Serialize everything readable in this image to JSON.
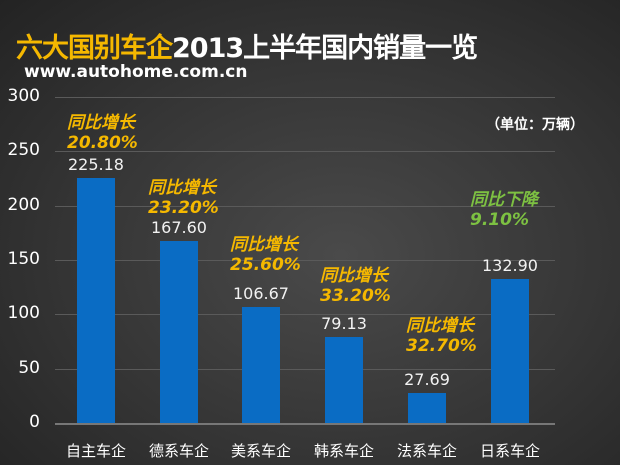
{
  "title": {
    "highlight": "六大国别车企",
    "rest": "2013上半年国内销量一览"
  },
  "url": "www.autohome.com.cn",
  "unit": "（单位：万辆）",
  "colors": {
    "bar": "#0a6cc4",
    "increase": "#f5b800",
    "decrease": "#7dc142",
    "title_highlight": "#f5b800"
  },
  "y_ticks": [
    "0",
    "50",
    "100",
    "150",
    "200",
    "250",
    "300"
  ],
  "bars": [
    {
      "category": "自主车企",
      "value": "225.18",
      "change_label": "同比增长",
      "change_pct": "20.80%",
      "trend": "up"
    },
    {
      "category": "德系车企",
      "value": "167.60",
      "change_label": "同比增长",
      "change_pct": "23.20%",
      "trend": "up"
    },
    {
      "category": "美系车企",
      "value": "106.67",
      "change_label": "同比增长",
      "change_pct": "25.60%",
      "trend": "up"
    },
    {
      "category": "韩系车企",
      "value": "79.13",
      "change_label": "同比增长",
      "change_pct": "33.20%",
      "trend": "up"
    },
    {
      "category": "法系车企",
      "value": "27.69",
      "change_label": "同比增长",
      "change_pct": "32.70%",
      "trend": "up"
    },
    {
      "category": "日系车企",
      "value": "132.90",
      "change_label": "同比下降",
      "change_pct": "9.10%",
      "trend": "down"
    }
  ],
  "chart_data": {
    "type": "bar",
    "title": "六大国别车企2013上半年国内销量一览",
    "subtitle": "www.autohome.com.cn",
    "categories": [
      "自主车企",
      "德系车企",
      "美系车企",
      "韩系车企",
      "法系车企",
      "日系车企"
    ],
    "values": [
      225.18,
      167.6,
      106.67,
      79.13,
      27.69,
      132.9
    ],
    "annotations": [
      "同比增长 20.80%",
      "同比增长 23.20%",
      "同比增长 25.60%",
      "同比增长 33.20%",
      "同比增长 32.70%",
      "同比下降 9.10%"
    ],
    "xlabel": "",
    "ylabel": "单位：万辆",
    "ylim": [
      0,
      300
    ],
    "yticks": [
      0,
      50,
      100,
      150,
      200,
      250,
      300
    ],
    "grid": true,
    "legend": "none"
  }
}
